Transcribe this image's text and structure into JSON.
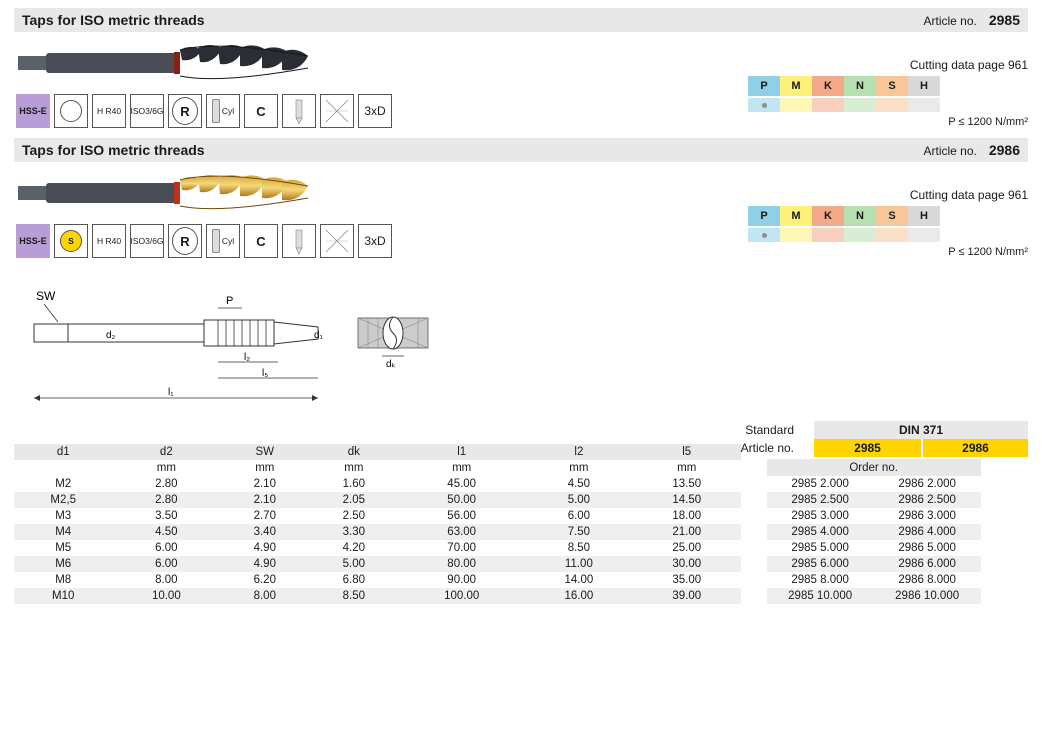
{
  "products": [
    {
      "title": "Taps for ISO metric threads",
      "articleLabel": "Article no.",
      "articleNo": "2985",
      "cuttingData": "Cutting data page 961",
      "plimit": "P ≤ 1200 N/mm²",
      "fluteStyle": "dark",
      "circGold": false,
      "specs": [
        "HSS-E",
        "",
        "H R40",
        "ISO3/6G",
        "R",
        "Cyl",
        "C",
        "",
        "",
        "3xD"
      ]
    },
    {
      "title": "Taps for ISO metric threads",
      "articleLabel": "Article no.",
      "articleNo": "2986",
      "cuttingData": "Cutting data page 961",
      "plimit": "P ≤ 1200 N/mm²",
      "fluteStyle": "gold",
      "circGold": true,
      "specs": [
        "HSS-E",
        "S",
        "H R40",
        "ISO3/6G",
        "R",
        "Cyl",
        "C",
        "",
        "",
        "3xD"
      ]
    }
  ],
  "materials": {
    "labels": [
      "P",
      "M",
      "K",
      "N",
      "S",
      "H"
    ],
    "colors": [
      "#8fd0e8",
      "#fff07a",
      "#f4a98a",
      "#b7e0b0",
      "#f7c79a",
      "#d9d9d9"
    ],
    "dotIndex": 0
  },
  "tableHead1": [
    "d1",
    "d2",
    "SW",
    "dk",
    "l1",
    "l2",
    "l5"
  ],
  "tableHead2": [
    "",
    "mm",
    "mm",
    "mm",
    "mm",
    "mm",
    "mm"
  ],
  "rows": [
    [
      "M2",
      "2.80",
      "2.10",
      "1.60",
      "45.00",
      "4.50",
      "13.50"
    ],
    [
      "M2,5",
      "2.80",
      "2.10",
      "2.05",
      "50.00",
      "5.00",
      "14.50"
    ],
    [
      "M3",
      "3.50",
      "2.70",
      "2.50",
      "56.00",
      "6.00",
      "18.00"
    ],
    [
      "M4",
      "4.50",
      "3.40",
      "3.30",
      "63.00",
      "7.50",
      "21.00"
    ],
    [
      "M5",
      "6.00",
      "4.90",
      "4.20",
      "70.00",
      "8.50",
      "25.00"
    ],
    [
      "M6",
      "6.00",
      "4.90",
      "5.00",
      "80.00",
      "11.00",
      "30.00"
    ],
    [
      "M8",
      "8.00",
      "6.20",
      "6.80",
      "90.00",
      "14.00",
      "35.00"
    ],
    [
      "M10",
      "10.00",
      "8.00",
      "8.50",
      "100.00",
      "16.00",
      "39.00"
    ]
  ],
  "rightBlock": {
    "standardLabel": "Standard",
    "standardVal": "DIN 371",
    "articleLabel": "Article no.",
    "articles": [
      "2985",
      "2986"
    ],
    "orderLabel": "Order no.",
    "orderRows": [
      [
        "2985 2.000",
        "2986 2.000"
      ],
      [
        "2985 2.500",
        "2986 2.500"
      ],
      [
        "2985 3.000",
        "2986 3.000"
      ],
      [
        "2985 4.000",
        "2986 4.000"
      ],
      [
        "2985 5.000",
        "2986 5.000"
      ],
      [
        "2985 6.000",
        "2986 6.000"
      ],
      [
        "2985 8.000",
        "2986 8.000"
      ],
      [
        "2985 10.000",
        "2986 10.000"
      ]
    ]
  },
  "yellowColor": "#ffd400"
}
